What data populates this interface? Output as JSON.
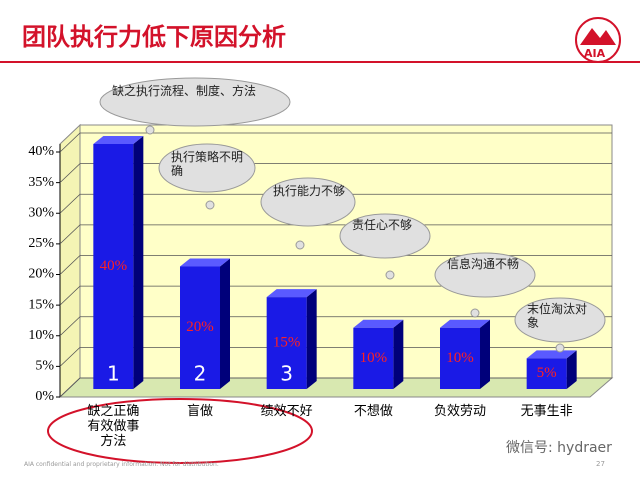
{
  "chart_data": {
    "type": "bar",
    "title": "团队执行力低下原因分析",
    "logo": "AIA",
    "categories": [
      "缺之正确有效做事方法",
      "盲做",
      "绩效不好",
      "不想做",
      "负效劳动",
      "无事生非"
    ],
    "values": [
      40,
      20,
      15,
      10,
      10,
      5
    ],
    "value_labels": [
      "40%",
      "20%",
      "15%",
      "10%",
      "10%",
      "5%"
    ],
    "bar_labels": [
      "1",
      "2",
      "3",
      null,
      null,
      null
    ],
    "annotations": [
      "缺之执行流程、制度、方法",
      "执行策略不明确",
      "执行能力不够",
      "责任心不够",
      "信息沟通不畅",
      "末位淘汰对象"
    ],
    "color": "#1a1ae6",
    "ylim": [
      0,
      40
    ],
    "yticks": [
      {
        "value": 0,
        "label": "0%"
      },
      {
        "value": 5,
        "label": "5%"
      },
      {
        "value": 10,
        "label": "10%"
      },
      {
        "value": 15,
        "label": "15%"
      },
      {
        "value": 20,
        "label": "20%"
      },
      {
        "value": 25,
        "label": "25%"
      },
      {
        "value": 30,
        "label": "30%"
      },
      {
        "value": 35,
        "label": "35%"
      },
      {
        "value": 40,
        "label": "40%"
      }
    ],
    "grid": true,
    "footer": "AIA confidential and proprietary information. Not for distribution.",
    "page_number": "27",
    "watermark": "微信号: hydraer"
  }
}
